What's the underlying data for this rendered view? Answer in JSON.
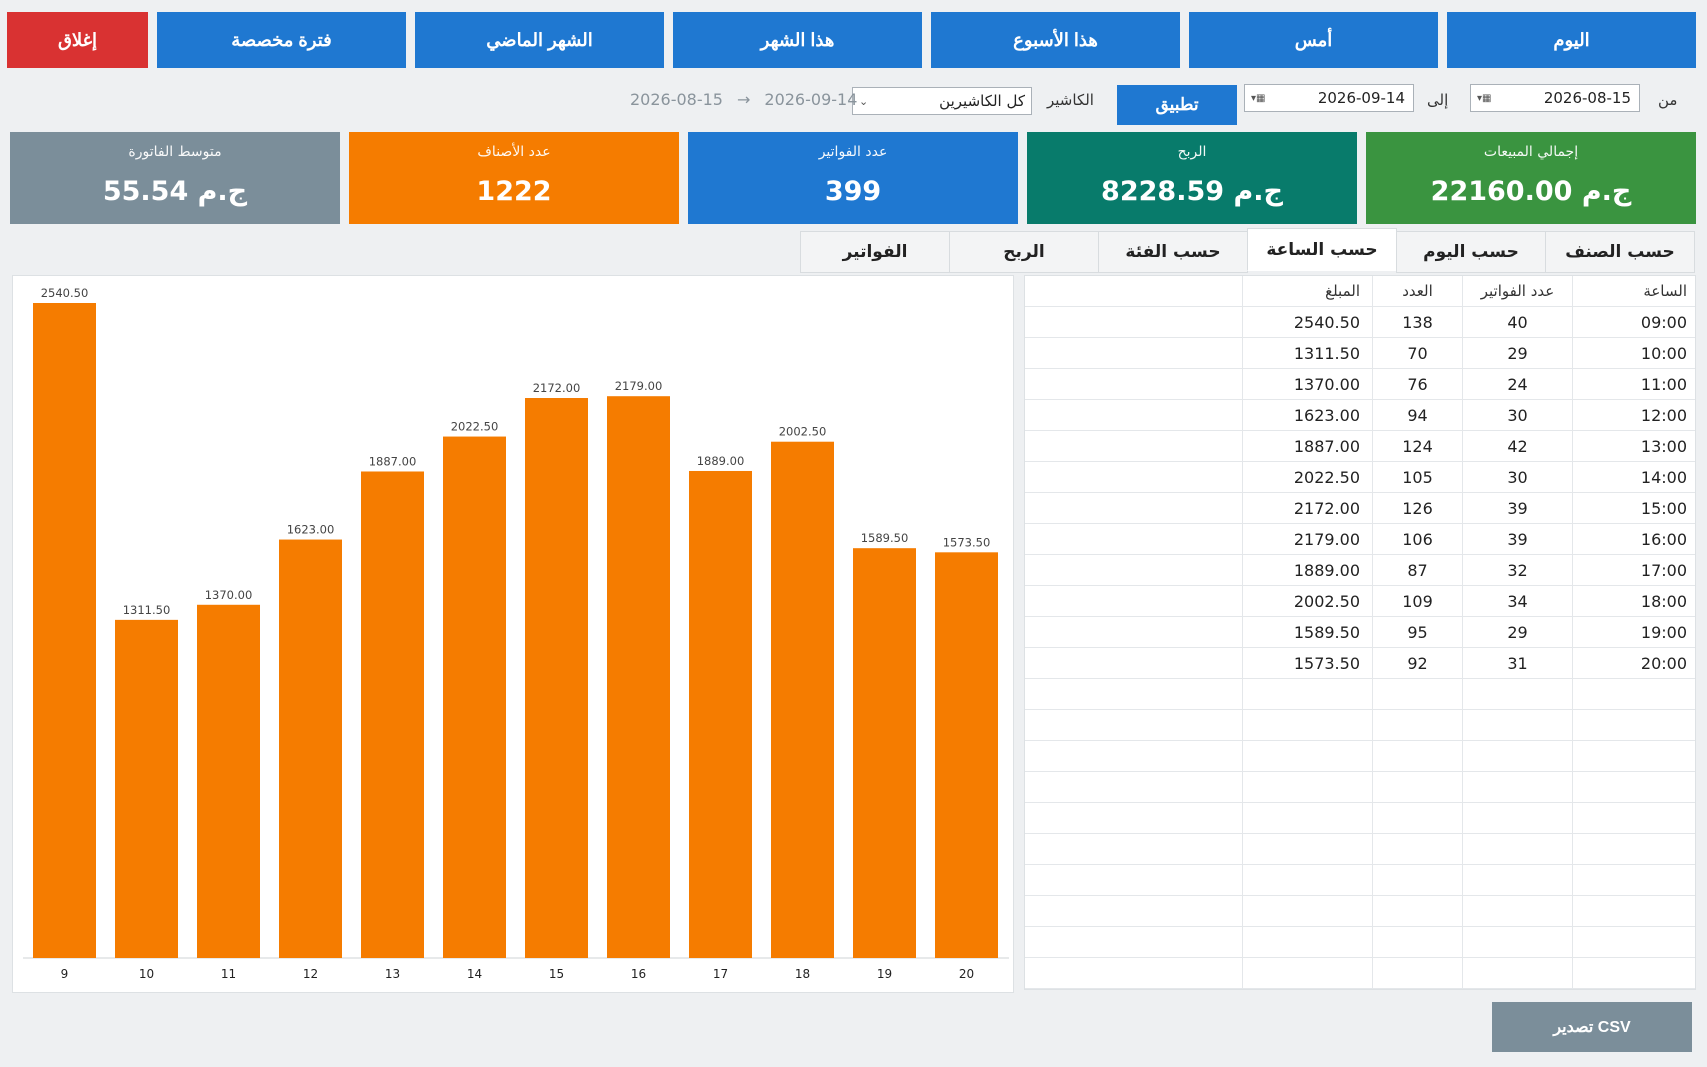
{
  "top_buttons": {
    "today": "اليوم",
    "yesterday": "أمس",
    "this_week": "هذا الأسبوع",
    "this_month": "هذا الشهر",
    "last_month": "الشهر الماضي",
    "custom_period": "فترة مخصصة",
    "close": "إغلاق"
  },
  "filter": {
    "from_label": "من",
    "from_date": "2026-08-15",
    "to_label": "إلى",
    "to_date": "2026-09-14",
    "apply": "تطبيق",
    "cashier_label": "الكاشير",
    "cashier_value": "كل الكاشيرين",
    "range_from": "2026-08-15",
    "range_arrow": "→",
    "range_to": "2026-09-14"
  },
  "kpis": {
    "total_sales": {
      "label": "إجمالي المبيعات",
      "value": "22160.00 ج.م",
      "color": "#3a9440"
    },
    "profit": {
      "label": "الربح",
      "value": "8228.59 ج.م",
      "color": "#087b6b"
    },
    "invoices": {
      "label": "عدد الفواتير",
      "value": "399",
      "color": "#1f78d1"
    },
    "items": {
      "label": "عدد الأصناف",
      "value": "1222",
      "color": "#f57c00"
    },
    "avg_invoice": {
      "label": "متوسط الفاتورة",
      "value": "55.54 ج.م",
      "color": "#7b8e9a"
    }
  },
  "tabs": {
    "by_item": "حسب الصنف",
    "by_day": "حسب اليوم",
    "by_hour": "حسب الساعة",
    "by_category": "حسب الفئة",
    "profit": "الربح",
    "invoices": "الفواتير",
    "active": "by_hour"
  },
  "table": {
    "headers": {
      "hour": "الساعة",
      "invoices": "عدد الفواتير",
      "count": "العدد",
      "amount": "المبلغ"
    },
    "rows": [
      {
        "hour": "09:00",
        "invoices": "40",
        "count": "138",
        "amount": "2540.50"
      },
      {
        "hour": "10:00",
        "invoices": "29",
        "count": "70",
        "amount": "1311.50"
      },
      {
        "hour": "11:00",
        "invoices": "24",
        "count": "76",
        "amount": "1370.00"
      },
      {
        "hour": "12:00",
        "invoices": "30",
        "count": "94",
        "amount": "1623.00"
      },
      {
        "hour": "13:00",
        "invoices": "42",
        "count": "124",
        "amount": "1887.00"
      },
      {
        "hour": "14:00",
        "invoices": "30",
        "count": "105",
        "amount": "2022.50"
      },
      {
        "hour": "15:00",
        "invoices": "39",
        "count": "126",
        "amount": "2172.00"
      },
      {
        "hour": "16:00",
        "invoices": "39",
        "count": "106",
        "amount": "2179.00"
      },
      {
        "hour": "17:00",
        "invoices": "32",
        "count": "87",
        "amount": "1889.00"
      },
      {
        "hour": "18:00",
        "invoices": "34",
        "count": "109",
        "amount": "2002.50"
      },
      {
        "hour": "19:00",
        "invoices": "29",
        "count": "95",
        "amount": "1589.50"
      },
      {
        "hour": "20:00",
        "invoices": "31",
        "count": "92",
        "amount": "1573.50"
      }
    ]
  },
  "chart_data": {
    "type": "bar",
    "categories": [
      "9",
      "10",
      "11",
      "12",
      "13",
      "14",
      "15",
      "16",
      "17",
      "18",
      "19",
      "20"
    ],
    "values": [
      2540.5,
      1311.5,
      1370.0,
      1623.0,
      1887.0,
      2022.5,
      2172.0,
      2179.0,
      1889.0,
      2002.5,
      1589.5,
      1573.5
    ],
    "value_labels": [
      "2540.50",
      "1311.50",
      "1370.00",
      "1623.00",
      "1887.00",
      "2022.50",
      "2172.00",
      "2179.00",
      "1889.00",
      "2002.50",
      "1589.50",
      "1573.50"
    ],
    "ylim": [
      0,
      2540.5
    ],
    "color": "#f57c00",
    "grid": false
  },
  "export": {
    "label": "تصدير CSV"
  }
}
